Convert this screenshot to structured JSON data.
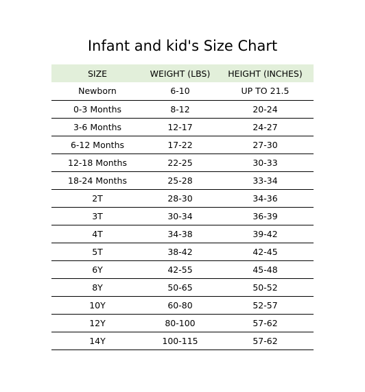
{
  "title": "Infant and kid's Size Chart",
  "header_bg": "#e2efda",
  "rule_color": "#000000",
  "columns": [
    "SIZE",
    "WEIGHT (LBS)",
    "HEIGHT (INCHES)"
  ],
  "rows": [
    [
      "Newborn",
      "6-10",
      "UP TO 21.5"
    ],
    [
      "0-3 Months",
      "8-12",
      "20-24"
    ],
    [
      "3-6 Months",
      "12-17",
      "24-27"
    ],
    [
      "6-12 Months",
      "17-22",
      "27-30"
    ],
    [
      "12-18 Months",
      "22-25",
      "30-33"
    ],
    [
      "18-24 Months",
      "25-28",
      "33-34"
    ],
    [
      "2T",
      "28-30",
      "34-36"
    ],
    [
      "3T",
      "30-34",
      "36-39"
    ],
    [
      "4T",
      "34-38",
      "39-42"
    ],
    [
      "5T",
      "38-42",
      "42-45"
    ],
    [
      "6Y",
      "42-55",
      "45-48"
    ],
    [
      "8Y",
      "50-65",
      "50-52"
    ],
    [
      "10Y",
      "60-80",
      "52-57"
    ],
    [
      "12Y",
      "80-100",
      "57-62"
    ],
    [
      "14Y",
      "100-115",
      "57-62"
    ]
  ]
}
